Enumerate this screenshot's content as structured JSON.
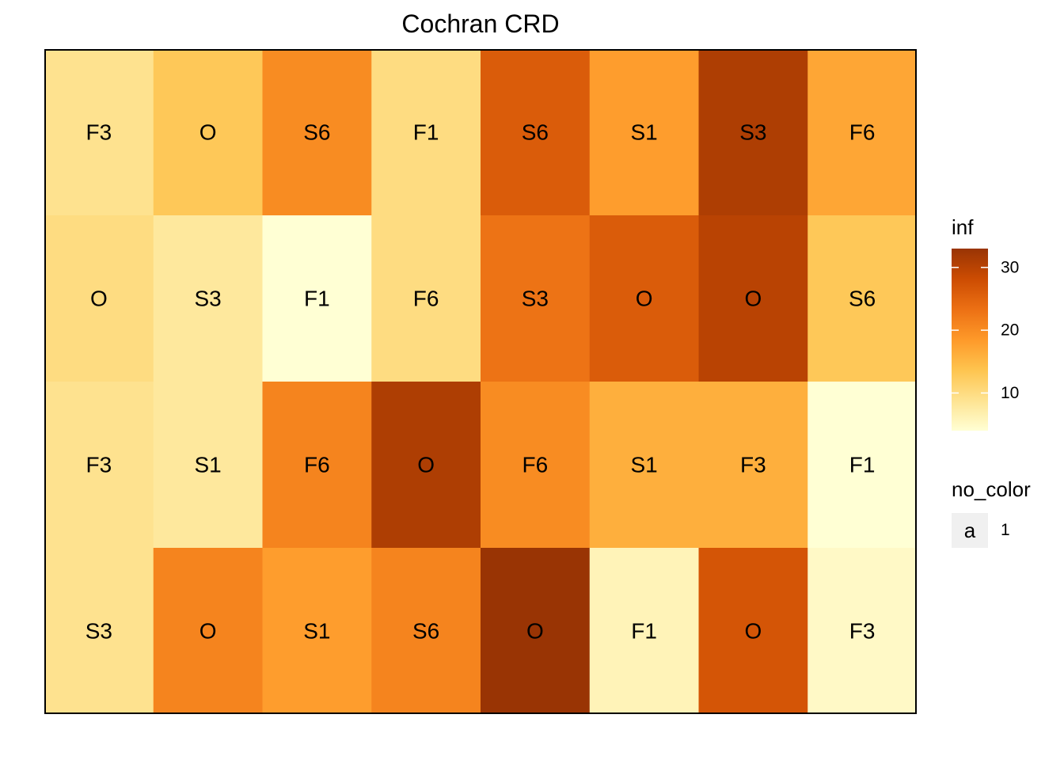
{
  "chart_data": {
    "type": "heatmap",
    "title": "Cochran CRD",
    "rows": 4,
    "cols": 8,
    "cells": [
      [
        {
          "label": "F3",
          "value": 9
        },
        {
          "label": "O",
          "value": 13
        },
        {
          "label": "S6",
          "value": 20
        },
        {
          "label": "F1",
          "value": 10
        },
        {
          "label": "S6",
          "value": 26
        },
        {
          "label": "S1",
          "value": 18
        },
        {
          "label": "S3",
          "value": 31
        },
        {
          "label": "F6",
          "value": 17
        }
      ],
      [
        {
          "label": "O",
          "value": 10
        },
        {
          "label": "S3",
          "value": 8
        },
        {
          "label": "F1",
          "value": 4
        },
        {
          "label": "F6",
          "value": 10
        },
        {
          "label": "S3",
          "value": 23
        },
        {
          "label": "O",
          "value": 26
        },
        {
          "label": "O",
          "value": 30
        },
        {
          "label": "S6",
          "value": 13
        }
      ],
      [
        {
          "label": "F3",
          "value": 9
        },
        {
          "label": "S1",
          "value": 8
        },
        {
          "label": "F6",
          "value": 21
        },
        {
          "label": "O",
          "value": 31
        },
        {
          "label": "F6",
          "value": 20
        },
        {
          "label": "S1",
          "value": 16
        },
        {
          "label": "F3",
          "value": 16
        },
        {
          "label": "F1",
          "value": 4
        }
      ],
      [
        {
          "label": "S3",
          "value": 9
        },
        {
          "label": "O",
          "value": 21
        },
        {
          "label": "S1",
          "value": 18
        },
        {
          "label": "S6",
          "value": 21
        },
        {
          "label": "O",
          "value": 33
        },
        {
          "label": "F1",
          "value": 6
        },
        {
          "label": "O",
          "value": 27
        },
        {
          "label": "F3",
          "value": 5
        }
      ]
    ],
    "color_scale": {
      "name": "inf",
      "min": 4,
      "max": 33,
      "breaks": [
        10,
        20,
        30
      ],
      "colors": [
        "#ffffd4",
        "#fee391",
        "#fec44f",
        "#fe9929",
        "#ec7014",
        "#cc4c02",
        "#993404"
      ]
    },
    "legend2": {
      "title": "no_color",
      "key": "a",
      "label": "1"
    },
    "legend_position": "right",
    "grid": false
  }
}
